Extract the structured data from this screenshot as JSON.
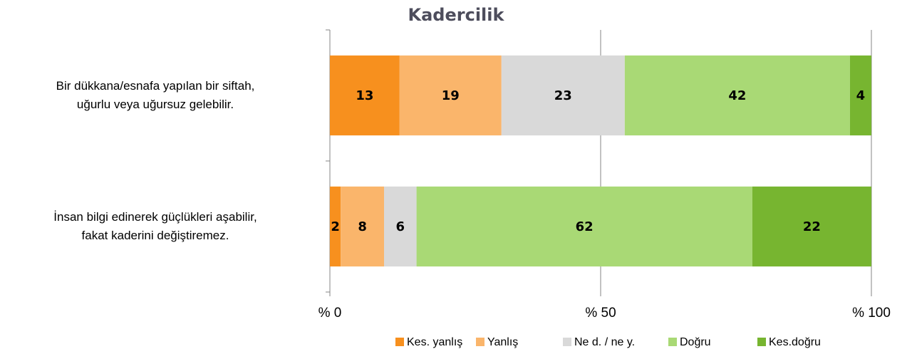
{
  "chart_data": {
    "type": "bar",
    "orientation": "horizontal",
    "stacking": "percent",
    "title": "Kadercilik",
    "categories": [
      "Bir dükkana/esnafa yapılan bir siftah,\nuğurlu veya uğursuz gelebilir.",
      "İnsan bilgi edinerek güçlükleri aşabilir,\nfakat kaderini değiştiremez."
    ],
    "series": [
      {
        "name": "Kes. yanlış",
        "color": "#f7901e",
        "values": [
          13,
          2
        ]
      },
      {
        "name": "Yanlış",
        "color": "#fab56b",
        "values": [
          19,
          8
        ]
      },
      {
        "name": "Ne d. / ne y.",
        "color": "#d9d9d9",
        "values": [
          23,
          6
        ]
      },
      {
        "name": "Doğru",
        "color": "#a9d975",
        "values": [
          42,
          62
        ]
      },
      {
        "name": "Kes.doğru",
        "color": "#77b530",
        "values": [
          4,
          22
        ]
      }
    ],
    "xlim": [
      0,
      100
    ],
    "xticks": [
      {
        "value": 0,
        "label": "% 0"
      },
      {
        "value": 50,
        "label": "% 50"
      },
      {
        "value": 100,
        "label": "% 100"
      }
    ],
    "grid": true,
    "legend": "bottom"
  }
}
